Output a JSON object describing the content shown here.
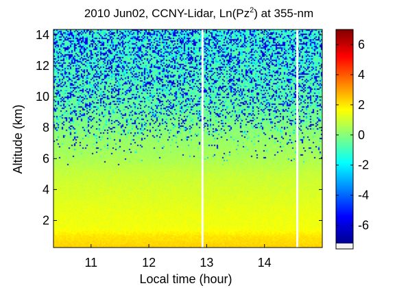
{
  "chart_data": {
    "type": "heatmap",
    "title": {
      "main": "2010 Jun02, CCNY-Lidar, Ln(Pz",
      "sup": "2",
      "suffix": ") at 355-nm"
    },
    "xlabel": "Local time (hour)",
    "ylabel": "Altitude (km)",
    "xlim": [
      10.35,
      15.0
    ],
    "ylim": [
      0.25,
      14.35
    ],
    "xticks": [
      11,
      12,
      13,
      14
    ],
    "yticks": [
      2,
      4,
      6,
      8,
      10,
      12,
      14
    ],
    "colorbar": {
      "clim": [
        -7.2,
        7
      ],
      "ticks": [
        6,
        4,
        2,
        0,
        -2,
        -4,
        -6
      ]
    },
    "data_gaps_hours": [
      [
        12.91,
        12.94
      ],
      [
        14.55,
        14.58
      ]
    ],
    "profile_by_altitude": [
      {
        "altitude_km": 0.3,
        "value": 2.3
      },
      {
        "altitude_km": 1.0,
        "value": 2.0
      },
      {
        "altitude_km": 1.5,
        "value": 1.5
      },
      {
        "altitude_km": 2.5,
        "value": 1.4
      },
      {
        "altitude_km": 4.0,
        "value": 1.1
      },
      {
        "altitude_km": 5.0,
        "value": 0.9
      },
      {
        "altitude_km": 6.0,
        "value": 0.5
      },
      {
        "altitude_km": 7.0,
        "value": 0.3
      },
      {
        "altitude_km": 8.0,
        "value": 0.0
      },
      {
        "altitude_km": 9.0,
        "value": -0.3
      },
      {
        "altitude_km": 10.0,
        "value": -0.5
      },
      {
        "altitude_km": 12.0,
        "value": -0.8
      },
      {
        "altitude_km": 14.3,
        "value": -1.0
      }
    ],
    "noise_fraction_by_altitude": [
      {
        "altitude_km": 5.5,
        "fraction": 0.0
      },
      {
        "altitude_km": 7.0,
        "fraction": 0.08
      },
      {
        "altitude_km": 8.0,
        "fraction": 0.2
      },
      {
        "altitude_km": 9.0,
        "fraction": 0.32
      },
      {
        "altitude_km": 10.0,
        "fraction": 0.4
      },
      {
        "altitude_km": 11.0,
        "fraction": 0.45
      },
      {
        "altitude_km": 12.0,
        "fraction": 0.5
      },
      {
        "altitude_km": 13.0,
        "fraction": 0.55
      },
      {
        "altitude_km": 14.3,
        "fraction": 0.6
      }
    ],
    "colormap": "jet"
  }
}
